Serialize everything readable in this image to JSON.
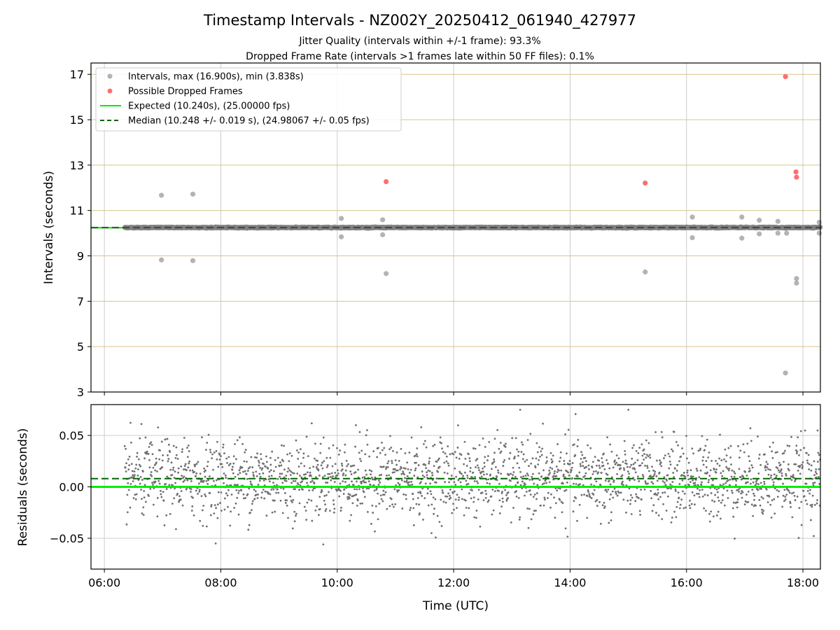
{
  "chart_data": [
    {
      "type": "scatter",
      "title": "Timestamp Intervals - NZ002Y_20250412_061940_427977",
      "subtitle_lines": [
        "Jitter Quality (intervals within +/-1 frame): 93.3%",
        "Dropped Frame Rate (intervals >1 frames late within 50 FF files): 0.1%"
      ],
      "ylabel": "Intervals (seconds)",
      "xlim": [
        5.77,
        18.3
      ],
      "ylim": [
        3,
        17.5
      ],
      "yticks": [
        3,
        5,
        7,
        9,
        11,
        13,
        15,
        17
      ],
      "grid": true,
      "legend_position": "top-left",
      "series": [
        {
          "name": "Intervals, max (16.900s), min (3.838s)",
          "color": "#808080",
          "band": {
            "x_start": 6.35,
            "x_end": 18.3,
            "y": 10.248
          },
          "outliers": [
            {
              "x": 6.98,
              "y": 11.67
            },
            {
              "x": 6.98,
              "y": 8.82
            },
            {
              "x": 7.52,
              "y": 11.72
            },
            {
              "x": 7.52,
              "y": 8.79
            },
            {
              "x": 10.07,
              "y": 10.65
            },
            {
              "x": 10.07,
              "y": 9.84
            },
            {
              "x": 10.78,
              "y": 10.59
            },
            {
              "x": 10.78,
              "y": 9.93
            },
            {
              "x": 10.84,
              "y": 8.22
            },
            {
              "x": 15.29,
              "y": 8.29
            },
            {
              "x": 16.1,
              "y": 10.71
            },
            {
              "x": 16.1,
              "y": 9.8
            },
            {
              "x": 16.95,
              "y": 10.71
            },
            {
              "x": 16.95,
              "y": 9.78
            },
            {
              "x": 17.25,
              "y": 10.57
            },
            {
              "x": 17.25,
              "y": 9.97
            },
            {
              "x": 17.57,
              "y": 10.52
            },
            {
              "x": 17.57,
              "y": 10.0
            },
            {
              "x": 17.72,
              "y": 10.0
            },
            {
              "x": 17.7,
              "y": 3.838
            },
            {
              "x": 17.89,
              "y": 8.0
            },
            {
              "x": 17.89,
              "y": 7.8
            },
            {
              "x": 18.28,
              "y": 10.48
            },
            {
              "x": 18.28,
              "y": 10.0
            }
          ]
        },
        {
          "name": "Possible Dropped Frames",
          "color": "#ff5555",
          "points": [
            {
              "x": 10.84,
              "y": 12.27
            },
            {
              "x": 15.29,
              "y": 12.21
            },
            {
              "x": 17.7,
              "y": 16.9
            },
            {
              "x": 17.88,
              "y": 12.7
            },
            {
              "x": 17.89,
              "y": 12.47
            }
          ]
        },
        {
          "name": "Expected (10.240s), (25.00000 fps)",
          "type": "hline",
          "y": 10.24,
          "color": "#00ee00",
          "style": "solid"
        },
        {
          "name": "Median (10.248 +/- 0.019 s), (24.98067 +/- 0.05 fps)",
          "type": "hline",
          "y": 10.248,
          "color": "#006600",
          "style": "dashed"
        }
      ]
    },
    {
      "type": "scatter",
      "ylabel": "Residuals (seconds)",
      "xlabel": "Time (UTC)",
      "xlim": [
        5.77,
        18.3
      ],
      "ylim": [
        -0.08,
        0.08
      ],
      "yticks": [
        -0.05,
        0.0,
        0.05
      ],
      "ytick_labels": [
        "−0.05",
        "0.00",
        "0.05"
      ],
      "xticks": [
        6,
        8,
        10,
        12,
        14,
        16,
        18
      ],
      "xtick_labels": [
        "06:00",
        "08:00",
        "10:00",
        "12:00",
        "14:00",
        "16:00",
        "18:00"
      ],
      "grid": true,
      "series": [
        {
          "name": "Residuals",
          "color": "#707070",
          "x_start": 6.35,
          "x_end": 18.3,
          "center": 0.008,
          "std": 0.019,
          "min": -0.056,
          "max": 0.075
        },
        {
          "name": "Expected",
          "type": "hline",
          "y": 0.0,
          "color": "#00ee00",
          "style": "solid"
        },
        {
          "name": "Median",
          "type": "hline",
          "y": 0.008,
          "color": "#006600",
          "style": "dashed"
        }
      ]
    }
  ]
}
